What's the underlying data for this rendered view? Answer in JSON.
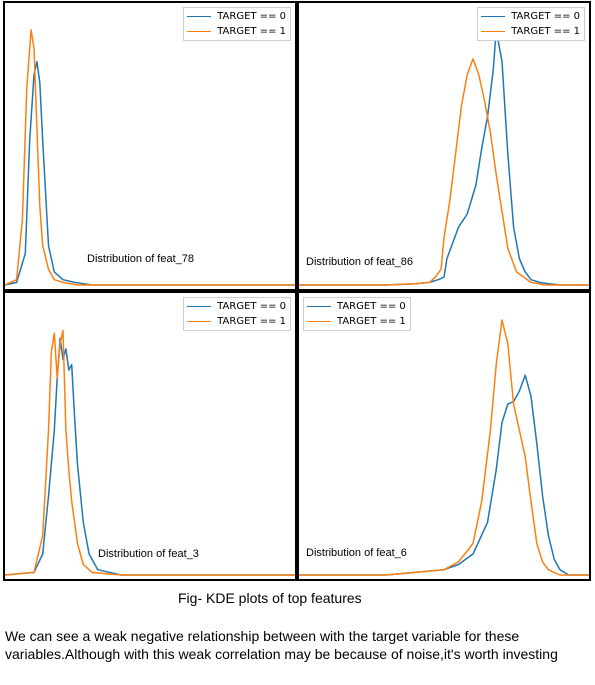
{
  "colors": {
    "target0": "#1f77b4",
    "target1": "#ff7f0e",
    "axis": "#000000"
  },
  "legend_labels": [
    "TARGET == 0",
    "TARGET == 1"
  ],
  "caption": "Fig- KDE plots of top features",
  "note": "We can see a weak negative relationship between with the target variable for these variables.Although with this weak correlation may be because of noise,it's worth investing",
  "chart_data": [
    {
      "type": "line",
      "title": "Distribution of feat_78",
      "legend_position": "top-right",
      "xlim": [
        0,
        1
      ],
      "ylim": [
        0,
        1.05
      ],
      "series": [
        {
          "name": "TARGET == 0",
          "x": [
            0.0,
            0.04,
            0.07,
            0.085,
            0.1,
            0.11,
            0.12,
            0.13,
            0.14,
            0.15,
            0.17,
            0.2,
            0.24,
            0.3,
            0.5,
            1.0
          ],
          "y": [
            0,
            0.01,
            0.12,
            0.55,
            0.8,
            0.85,
            0.77,
            0.55,
            0.35,
            0.15,
            0.05,
            0.02,
            0.01,
            0,
            0,
            0
          ]
        },
        {
          "name": "TARGET == 1",
          "x": [
            0.0,
            0.04,
            0.06,
            0.075,
            0.09,
            0.1,
            0.11,
            0.12,
            0.13,
            0.15,
            0.17,
            0.2,
            0.25,
            0.3,
            1.0
          ],
          "y": [
            0,
            0.02,
            0.25,
            0.75,
            0.97,
            0.9,
            0.6,
            0.3,
            0.15,
            0.06,
            0.02,
            0.01,
            0,
            0,
            0
          ]
        }
      ]
    },
    {
      "type": "line",
      "title": "Distribution of feat_86",
      "legend_position": "top-right",
      "xlim": [
        0,
        1
      ],
      "ylim": [
        0,
        1.05
      ],
      "series": [
        {
          "name": "TARGET == 0",
          "x": [
            0.0,
            0.3,
            0.4,
            0.45,
            0.48,
            0.5,
            0.51,
            0.55,
            0.58,
            0.61,
            0.63,
            0.65,
            0.67,
            0.68,
            0.7,
            0.72,
            0.74,
            0.76,
            0.78,
            0.8,
            0.83,
            0.86,
            0.9,
            1.0
          ],
          "y": [
            0,
            0,
            0.005,
            0.01,
            0.02,
            0.03,
            0.1,
            0.22,
            0.27,
            0.38,
            0.52,
            0.64,
            0.82,
            0.97,
            0.85,
            0.5,
            0.22,
            0.1,
            0.05,
            0.02,
            0.01,
            0.005,
            0,
            0
          ]
        },
        {
          "name": "TARGET == 1",
          "x": [
            0.0,
            0.3,
            0.4,
            0.45,
            0.47,
            0.49,
            0.5,
            0.52,
            0.54,
            0.56,
            0.58,
            0.6,
            0.62,
            0.64,
            0.66,
            0.68,
            0.7,
            0.72,
            0.75,
            0.8,
            0.85,
            1.0
          ],
          "y": [
            0,
            0,
            0.005,
            0.01,
            0.03,
            0.06,
            0.18,
            0.32,
            0.5,
            0.68,
            0.8,
            0.86,
            0.8,
            0.7,
            0.58,
            0.42,
            0.28,
            0.14,
            0.05,
            0.01,
            0,
            0
          ]
        }
      ]
    },
    {
      "type": "line",
      "title": "Distribution of feat_3",
      "legend_position": "top-right",
      "xlim": [
        0,
        1
      ],
      "ylim": [
        0,
        1.05
      ],
      "series": [
        {
          "name": "TARGET == 0",
          "x": [
            0.0,
            0.1,
            0.13,
            0.15,
            0.17,
            0.18,
            0.19,
            0.2,
            0.21,
            0.22,
            0.23,
            0.24,
            0.25,
            0.27,
            0.29,
            0.32,
            0.4,
            1.0
          ],
          "y": [
            0,
            0.01,
            0.08,
            0.3,
            0.55,
            0.75,
            0.9,
            0.82,
            0.86,
            0.78,
            0.8,
            0.6,
            0.42,
            0.2,
            0.08,
            0.02,
            0,
            0
          ]
        },
        {
          "name": "TARGET == 1",
          "x": [
            0.0,
            0.1,
            0.13,
            0.15,
            0.16,
            0.17,
            0.18,
            0.19,
            0.2,
            0.21,
            0.22,
            0.23,
            0.25,
            0.27,
            0.3,
            0.4,
            1.0
          ],
          "y": [
            0,
            0.01,
            0.15,
            0.55,
            0.85,
            0.92,
            0.75,
            0.88,
            0.93,
            0.55,
            0.4,
            0.28,
            0.12,
            0.04,
            0.01,
            0,
            0
          ]
        }
      ]
    },
    {
      "type": "line",
      "title": "Distribution of feat_6",
      "legend_position": "top-left",
      "xlim": [
        0,
        1
      ],
      "ylim": [
        0,
        1.05
      ],
      "series": [
        {
          "name": "TARGET == 0",
          "x": [
            0.0,
            0.3,
            0.4,
            0.5,
            0.55,
            0.6,
            0.65,
            0.68,
            0.7,
            0.72,
            0.74,
            0.76,
            0.78,
            0.8,
            0.82,
            0.84,
            0.86,
            0.88,
            0.9,
            0.93,
            1.0
          ],
          "y": [
            0,
            0,
            0.01,
            0.02,
            0.04,
            0.08,
            0.2,
            0.4,
            0.58,
            0.65,
            0.66,
            0.7,
            0.76,
            0.68,
            0.5,
            0.3,
            0.15,
            0.06,
            0.02,
            0,
            0
          ]
        },
        {
          "name": "TARGET == 1",
          "x": [
            0.0,
            0.3,
            0.4,
            0.5,
            0.55,
            0.6,
            0.63,
            0.66,
            0.68,
            0.7,
            0.72,
            0.74,
            0.76,
            0.78,
            0.8,
            0.82,
            0.84,
            0.86,
            0.88,
            0.9,
            1.0
          ],
          "y": [
            0,
            0,
            0.01,
            0.02,
            0.05,
            0.12,
            0.28,
            0.55,
            0.8,
            0.97,
            0.88,
            0.65,
            0.55,
            0.45,
            0.28,
            0.12,
            0.05,
            0.02,
            0.01,
            0,
            0
          ]
        }
      ]
    }
  ]
}
